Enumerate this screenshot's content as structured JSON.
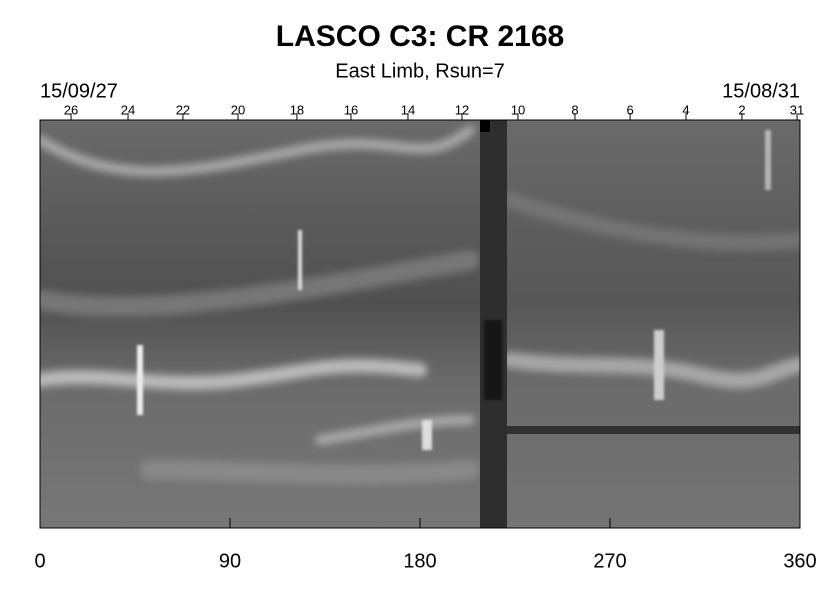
{
  "chart_data": {
    "type": "image",
    "title": "LASCO C3: CR 2168",
    "subtitle": "East Limb, Rsun=7",
    "start_date": "15/09/27",
    "end_date": "15/08/31",
    "xlim": [
      0,
      360
    ],
    "xticks": [
      0,
      90,
      180,
      270,
      360
    ],
    "top_ticks": [
      {
        "value": 14.7,
        "label": "26"
      },
      {
        "value": 41.7,
        "label": "24"
      },
      {
        "value": 67.7,
        "label": "22"
      },
      {
        "value": 93.8,
        "label": "20"
      },
      {
        "value": 121.7,
        "label": "18"
      },
      {
        "value": 147.3,
        "label": "16"
      },
      {
        "value": 174.3,
        "label": "14"
      },
      {
        "value": 199.9,
        "label": "12"
      },
      {
        "value": 226.4,
        "label": "10"
      },
      {
        "value": 253.4,
        "label": "8"
      },
      {
        "value": 279.5,
        "label": "6"
      },
      {
        "value": 306,
        "label": "4"
      },
      {
        "value": 332.5,
        "label": "2"
      },
      {
        "value": 358.6,
        "label": "31"
      }
    ]
  }
}
